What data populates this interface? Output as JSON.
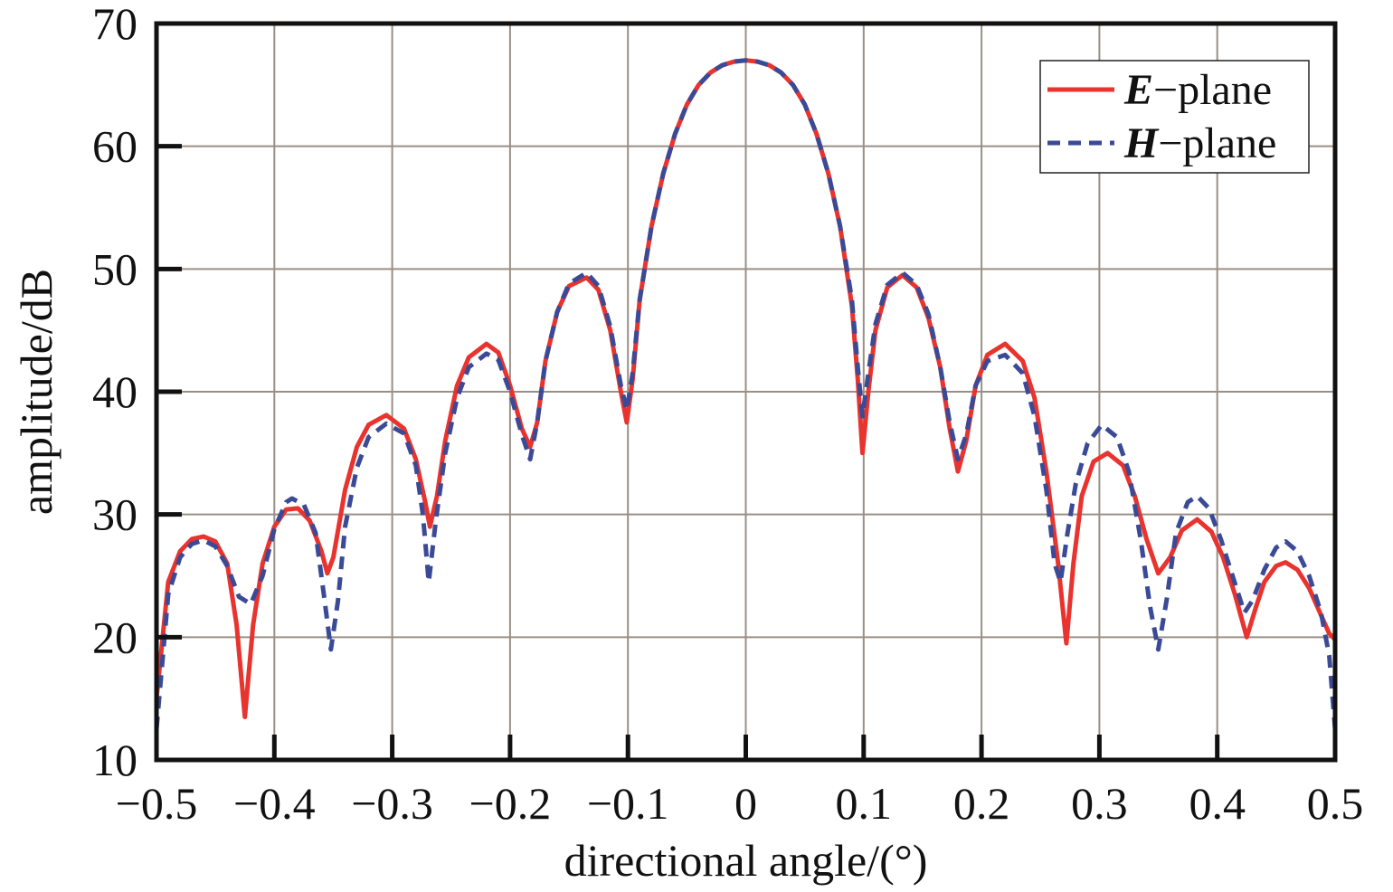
{
  "chart_data": {
    "type": "line",
    "title": "",
    "xlabel": "directional angle/(°)",
    "ylabel": "amplitude/dB",
    "xlim": [
      -0.5,
      0.5
    ],
    "ylim": [
      10,
      70
    ],
    "xticks": [
      -0.5,
      -0.4,
      -0.3,
      -0.2,
      -0.1,
      0,
      0.1,
      0.2,
      0.3,
      0.4,
      0.5
    ],
    "xtick_labels": [
      "−0.5",
      "−0.4",
      "−0.3",
      "−0.2",
      "−0.1",
      "0",
      "0.1",
      "0.2",
      "0.3",
      "0.4",
      "0.5"
    ],
    "yticks": [
      10,
      20,
      30,
      40,
      50,
      60,
      70
    ],
    "ytick_labels": [
      "10",
      "20",
      "30",
      "40",
      "50",
      "60",
      "70"
    ],
    "grid": true,
    "legend_position": "top-right",
    "series": [
      {
        "name": "E-plane",
        "legend_symbol": "E",
        "legend_suffix": "−plane",
        "color": "#e8332e",
        "dash": "solid",
        "points": [
          [
            -0.5,
            15.0
          ],
          [
            -0.49,
            24.5
          ],
          [
            -0.48,
            27.0
          ],
          [
            -0.47,
            28.0
          ],
          [
            -0.46,
            28.2
          ],
          [
            -0.45,
            27.8
          ],
          [
            -0.44,
            26.0
          ],
          [
            -0.432,
            21.0
          ],
          [
            -0.425,
            13.5
          ],
          [
            -0.418,
            21.0
          ],
          [
            -0.41,
            26.0
          ],
          [
            -0.4,
            29.0
          ],
          [
            -0.39,
            30.4
          ],
          [
            -0.38,
            30.5
          ],
          [
            -0.37,
            29.5
          ],
          [
            -0.36,
            27.0
          ],
          [
            -0.355,
            25.2
          ],
          [
            -0.35,
            26.5
          ],
          [
            -0.34,
            32.0
          ],
          [
            -0.33,
            35.5
          ],
          [
            -0.32,
            37.3
          ],
          [
            -0.305,
            38.1
          ],
          [
            -0.29,
            37.0
          ],
          [
            -0.28,
            34.5
          ],
          [
            -0.272,
            31.0
          ],
          [
            -0.268,
            29.0
          ],
          [
            -0.262,
            31.5
          ],
          [
            -0.255,
            36.0
          ],
          [
            -0.245,
            40.5
          ],
          [
            -0.235,
            42.8
          ],
          [
            -0.22,
            43.9
          ],
          [
            -0.21,
            43.2
          ],
          [
            -0.2,
            40.5
          ],
          [
            -0.19,
            37.0
          ],
          [
            -0.183,
            35.5
          ],
          [
            -0.177,
            37.5
          ],
          [
            -0.17,
            42.5
          ],
          [
            -0.16,
            46.5
          ],
          [
            -0.15,
            48.6
          ],
          [
            -0.135,
            49.3
          ],
          [
            -0.125,
            48.3
          ],
          [
            -0.115,
            45.0
          ],
          [
            -0.106,
            40.0
          ],
          [
            -0.101,
            37.5
          ],
          [
            -0.096,
            41.0
          ],
          [
            -0.09,
            47.5
          ],
          [
            -0.08,
            53.5
          ],
          [
            -0.07,
            57.8
          ],
          [
            -0.06,
            61.0
          ],
          [
            -0.05,
            63.4
          ],
          [
            -0.04,
            65.0
          ],
          [
            -0.03,
            66.0
          ],
          [
            -0.02,
            66.6
          ],
          [
            -0.01,
            66.9
          ],
          [
            0.0,
            67.0
          ],
          [
            0.01,
            66.9
          ],
          [
            0.02,
            66.6
          ],
          [
            0.03,
            66.0
          ],
          [
            0.04,
            65.0
          ],
          [
            0.05,
            63.4
          ],
          [
            0.06,
            61.0
          ],
          [
            0.07,
            57.8
          ],
          [
            0.08,
            53.5
          ],
          [
            0.09,
            47.0
          ],
          [
            0.095,
            41.0
          ],
          [
            0.099,
            35.0
          ],
          [
            0.104,
            40.0
          ],
          [
            0.11,
            45.0
          ],
          [
            0.12,
            48.5
          ],
          [
            0.133,
            49.5
          ],
          [
            0.145,
            48.5
          ],
          [
            0.155,
            46.0
          ],
          [
            0.165,
            42.0
          ],
          [
            0.173,
            37.0
          ],
          [
            0.18,
            33.5
          ],
          [
            0.187,
            36.0
          ],
          [
            0.195,
            40.5
          ],
          [
            0.205,
            43.0
          ],
          [
            0.22,
            43.9
          ],
          [
            0.235,
            42.5
          ],
          [
            0.245,
            39.5
          ],
          [
            0.255,
            33.5
          ],
          [
            0.265,
            26.0
          ],
          [
            0.272,
            19.5
          ],
          [
            0.278,
            26.0
          ],
          [
            0.285,
            31.5
          ],
          [
            0.295,
            34.3
          ],
          [
            0.307,
            35.0
          ],
          [
            0.32,
            34.0
          ],
          [
            0.33,
            31.5
          ],
          [
            0.34,
            28.0
          ],
          [
            0.35,
            25.2
          ],
          [
            0.36,
            26.5
          ],
          [
            0.37,
            28.7
          ],
          [
            0.383,
            29.6
          ],
          [
            0.395,
            28.6
          ],
          [
            0.405,
            26.5
          ],
          [
            0.415,
            23.5
          ],
          [
            0.425,
            20.0
          ],
          [
            0.433,
            22.5
          ],
          [
            0.44,
            24.5
          ],
          [
            0.45,
            25.8
          ],
          [
            0.458,
            26.1
          ],
          [
            0.468,
            25.5
          ],
          [
            0.478,
            24.0
          ],
          [
            0.488,
            21.8
          ],
          [
            0.495,
            20.3
          ],
          [
            0.5,
            19.8
          ]
        ]
      },
      {
        "name": "H-plane",
        "legend_symbol": "H",
        "legend_suffix": "−plane",
        "color": "#3a4a96",
        "dash": "dashed",
        "points": [
          [
            -0.5,
            12.5
          ],
          [
            -0.49,
            23.5
          ],
          [
            -0.48,
            26.5
          ],
          [
            -0.47,
            27.6
          ],
          [
            -0.46,
            27.9
          ],
          [
            -0.45,
            27.4
          ],
          [
            -0.44,
            25.8
          ],
          [
            -0.43,
            23.3
          ],
          [
            -0.42,
            22.7
          ],
          [
            -0.41,
            25.0
          ],
          [
            -0.4,
            28.8
          ],
          [
            -0.39,
            31.0
          ],
          [
            -0.385,
            31.3
          ],
          [
            -0.375,
            30.8
          ],
          [
            -0.365,
            28.5
          ],
          [
            -0.358,
            23.5
          ],
          [
            -0.352,
            19.0
          ],
          [
            -0.346,
            23.0
          ],
          [
            -0.34,
            29.0
          ],
          [
            -0.33,
            33.8
          ],
          [
            -0.32,
            36.3
          ],
          [
            -0.305,
            37.4
          ],
          [
            -0.29,
            36.6
          ],
          [
            -0.28,
            34.0
          ],
          [
            -0.274,
            30.0
          ],
          [
            -0.269,
            24.5
          ],
          [
            -0.263,
            29.5
          ],
          [
            -0.255,
            35.0
          ],
          [
            -0.245,
            39.5
          ],
          [
            -0.235,
            42.0
          ],
          [
            -0.22,
            43.1
          ],
          [
            -0.21,
            42.6
          ],
          [
            -0.2,
            40.0
          ],
          [
            -0.19,
            36.5
          ],
          [
            -0.183,
            34.5
          ],
          [
            -0.177,
            37.5
          ],
          [
            -0.17,
            42.5
          ],
          [
            -0.16,
            46.5
          ],
          [
            -0.15,
            48.8
          ],
          [
            -0.135,
            49.7
          ],
          [
            -0.125,
            48.6
          ],
          [
            -0.115,
            45.3
          ],
          [
            -0.106,
            40.5
          ],
          [
            -0.101,
            38.5
          ],
          [
            -0.096,
            41.5
          ],
          [
            -0.09,
            47.5
          ],
          [
            -0.08,
            53.5
          ],
          [
            -0.07,
            57.8
          ],
          [
            -0.06,
            61.0
          ],
          [
            -0.05,
            63.4
          ],
          [
            -0.04,
            65.0
          ],
          [
            -0.03,
            66.0
          ],
          [
            -0.02,
            66.6
          ],
          [
            -0.01,
            66.9
          ],
          [
            0.0,
            67.0
          ],
          [
            0.01,
            66.9
          ],
          [
            0.02,
            66.6
          ],
          [
            0.03,
            66.0
          ],
          [
            0.04,
            65.0
          ],
          [
            0.05,
            63.4
          ],
          [
            0.06,
            61.0
          ],
          [
            0.07,
            57.8
          ],
          [
            0.08,
            53.5
          ],
          [
            0.09,
            47.5
          ],
          [
            0.095,
            42.0
          ],
          [
            0.099,
            38.0
          ],
          [
            0.104,
            41.5
          ],
          [
            0.11,
            45.5
          ],
          [
            0.12,
            48.7
          ],
          [
            0.133,
            49.7
          ],
          [
            0.145,
            48.7
          ],
          [
            0.155,
            46.3
          ],
          [
            0.165,
            42.0
          ],
          [
            0.173,
            37.5
          ],
          [
            0.18,
            34.5
          ],
          [
            0.187,
            36.5
          ],
          [
            0.195,
            40.5
          ],
          [
            0.205,
            42.5
          ],
          [
            0.22,
            43.0
          ],
          [
            0.235,
            41.5
          ],
          [
            0.245,
            38.0
          ],
          [
            0.255,
            32.0
          ],
          [
            0.262,
            26.0
          ],
          [
            0.267,
            24.5
          ],
          [
            0.273,
            28.5
          ],
          [
            0.28,
            32.5
          ],
          [
            0.29,
            35.8
          ],
          [
            0.302,
            37.3
          ],
          [
            0.315,
            36.3
          ],
          [
            0.325,
            33.5
          ],
          [
            0.335,
            28.0
          ],
          [
            0.343,
            22.5
          ],
          [
            0.35,
            19.0
          ],
          [
            0.357,
            23.0
          ],
          [
            0.365,
            28.5
          ],
          [
            0.375,
            31.0
          ],
          [
            0.383,
            31.5
          ],
          [
            0.393,
            30.5
          ],
          [
            0.403,
            28.0
          ],
          [
            0.413,
            25.0
          ],
          [
            0.423,
            22.0
          ],
          [
            0.43,
            23.0
          ],
          [
            0.44,
            25.5
          ],
          [
            0.45,
            27.3
          ],
          [
            0.458,
            27.8
          ],
          [
            0.468,
            27.0
          ],
          [
            0.478,
            25.0
          ],
          [
            0.488,
            22.0
          ],
          [
            0.495,
            18.5
          ],
          [
            0.5,
            12.5
          ]
        ]
      }
    ]
  }
}
